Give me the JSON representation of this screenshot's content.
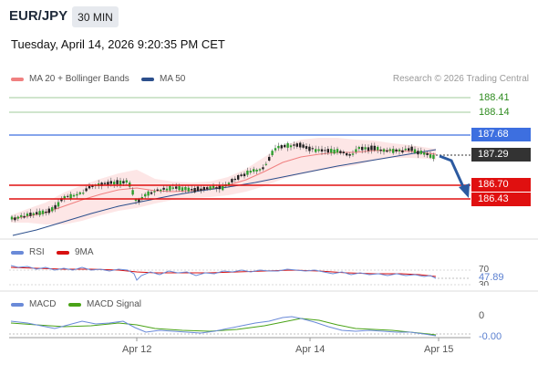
{
  "header": {
    "symbol": "EUR/JPY",
    "timeframe": "30 MIN",
    "datetime": "Tuesday, April 14, 2026 9:20:35 PM CET"
  },
  "legend": {
    "ma20": {
      "label": "MA 20 + Bollinger Bands",
      "color": "#f08080"
    },
    "ma50": {
      "label": "MA 50",
      "color": "#2c4f8c"
    },
    "copyright": "Research © 2026 Trading Central"
  },
  "levels": {
    "r3": "188.41",
    "r2": "188.14",
    "r1": "187.68",
    "last": "187.29",
    "s1": "186.70",
    "s2": "186.43"
  },
  "rsi": {
    "label": "RSI",
    "ma_label": "9MA",
    "level": "70",
    "value": "47.89",
    "level_low": "30"
  },
  "macd": {
    "label": "MACD",
    "signal_label": "MACD Signal",
    "zero": "0",
    "value": "-0.00"
  },
  "xaxis": {
    "labels": [
      "Apr 12",
      "Apr 14",
      "Apr 15"
    ]
  },
  "colors": {
    "green": "#2e8b1f",
    "blue": "#3d6fe0",
    "red": "#e01010",
    "dark": "#333333",
    "arrow": "#2c5aa0",
    "rsi": "#6a8ad8",
    "rsi_ma": "#d81010",
    "macd": "#6a8ad8",
    "macd_signal": "#4aa317"
  },
  "chart_data": {
    "type": "line",
    "instrument": "EUR/JPY",
    "timeframe": "30 MIN",
    "horizontal_levels": [
      188.41,
      188.14,
      187.68,
      187.29,
      186.7,
      186.43
    ],
    "last_price": 187.29,
    "x_ticks": [
      "Apr 12",
      "Apr 14",
      "Apr 15"
    ],
    "series": [
      {
        "name": "MA 20 + Bollinger Bands"
      },
      {
        "name": "MA 50"
      }
    ],
    "rsi": {
      "levels": [
        70,
        30
      ],
      "last": 47.89
    },
    "macd": {
      "zero": 0,
      "last": -0.0
    }
  }
}
